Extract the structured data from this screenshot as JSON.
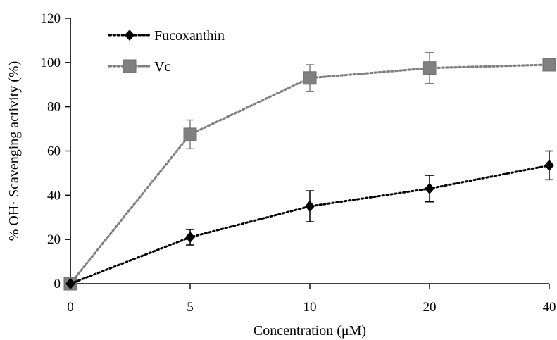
{
  "chart_data": {
    "type": "line",
    "categories": [
      "0",
      "5",
      "10",
      "20",
      "40"
    ],
    "xlabel": "Concentration (μM)",
    "ylabel": "% OH· Scavenging activity (%)",
    "ylim": [
      0,
      120
    ],
    "yticks": [
      "0",
      "20",
      "40",
      "60",
      "80",
      "100",
      "120"
    ],
    "grid": false,
    "legend_position": "top-left",
    "series": [
      {
        "name": "Fucoxanthin",
        "values": [
          0,
          21,
          35,
          43,
          53.5
        ],
        "errors": [
          0,
          3.5,
          7,
          6,
          6.5
        ],
        "marker": "diamond",
        "color": "#000000"
      },
      {
        "name": "Vc",
        "values": [
          0,
          67.5,
          93,
          97.5,
          99
        ],
        "errors": [
          0,
          6.5,
          6,
          7,
          2.5
        ],
        "marker": "square",
        "color": "#808080"
      }
    ]
  }
}
